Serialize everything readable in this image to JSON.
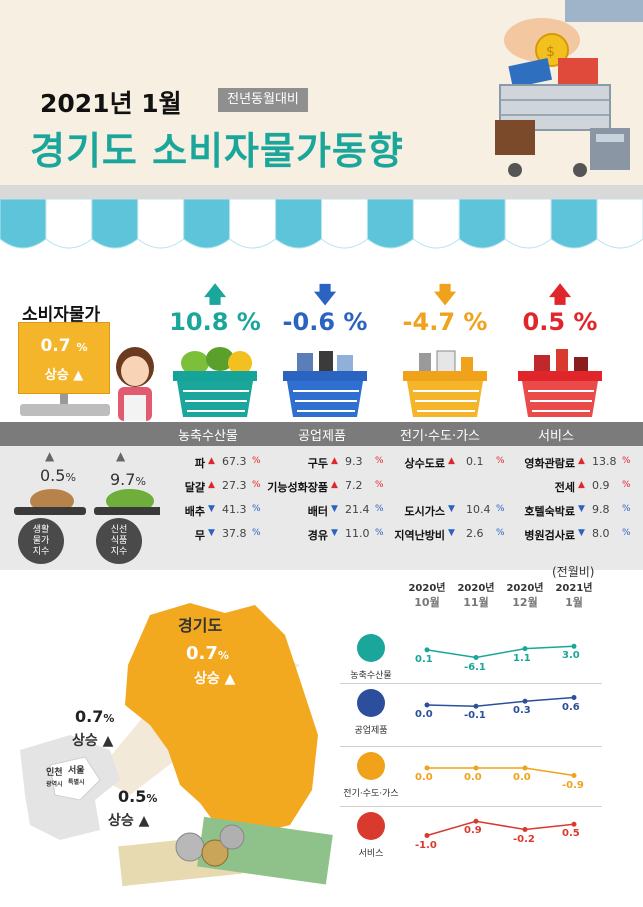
{
  "header": {
    "year_month": "2021년 1월",
    "badge": "전년동월대비",
    "title": "경기도 소비자물가동향"
  },
  "cpi": {
    "label": "소비자물가",
    "value": "0.7",
    "unit": "%",
    "direction": "상승"
  },
  "categories": [
    {
      "label": "농축수산물",
      "pct": "10.8 %",
      "arrow": "up",
      "color": "#1aa69a"
    },
    {
      "label": "공업제품",
      "pct": "-0.6 %",
      "arrow": "down",
      "color": "#2b63c0"
    },
    {
      "label": "전기·수도·가스",
      "pct": "-4.7 %",
      "arrow": "down",
      "color": "#f0a21b"
    },
    {
      "label": "서비스",
      "pct": "0.5 %",
      "arrow": "up",
      "color": "#e0262a"
    }
  ],
  "sub_indices": [
    {
      "label": "생활\n물가\n지수",
      "pct": "0.5",
      "unit": "%"
    },
    {
      "label": "신선\n식품\n지수",
      "pct": "9.7",
      "unit": "%"
    }
  ],
  "items": {
    "col1": [
      {
        "name": "파",
        "dir": "up",
        "val": "67.3",
        "unit": "%"
      },
      {
        "name": "달걀",
        "dir": "up",
        "val": "27.3",
        "unit": "%"
      },
      {
        "name": "배추",
        "dir": "down",
        "val": "41.3",
        "unit": "%"
      },
      {
        "name": "무",
        "dir": "down",
        "val": "37.8",
        "unit": "%"
      }
    ],
    "col2": [
      {
        "name": "구두",
        "dir": "up",
        "val": "9.3",
        "unit": "%"
      },
      {
        "name": "기능성화장품",
        "dir": "up",
        "val": "7.2",
        "unit": "%"
      },
      {
        "name": "배터",
        "dir": "down",
        "val": "21.4",
        "unit": "%"
      },
      {
        "name": "경유",
        "dir": "down",
        "val": "11.0",
        "unit": "%"
      }
    ],
    "col3": [
      {
        "name": "상수도료",
        "dir": "up",
        "val": "0.1",
        "unit": "%"
      },
      {
        "name": "",
        "dir": "",
        "val": "",
        "unit": ""
      },
      {
        "name": "도시가스",
        "dir": "down",
        "val": "10.4",
        "unit": "%"
      },
      {
        "name": "지역난방비",
        "dir": "down",
        "val": "2.6",
        "unit": "%"
      }
    ],
    "col4": [
      {
        "name": "영화관람료",
        "dir": "up",
        "val": "13.8",
        "unit": "%"
      },
      {
        "name": "전세",
        "dir": "up",
        "val": "0.9",
        "unit": "%"
      },
      {
        "name": "호텔숙박료",
        "dir": "down",
        "val": "9.8",
        "unit": "%"
      },
      {
        "name": "병원검사료",
        "dir": "down",
        "val": "8.0",
        "unit": "%"
      }
    ]
  },
  "map": {
    "gyeonggi_label": "경기도",
    "gyeonggi_value": "0.7",
    "gyeonggi_unit": "%",
    "gyeonggi_dir": "상승",
    "incheon_value": "0.7",
    "incheon_unit": "%",
    "incheon_dir": "상승",
    "seoul_value": "0.5",
    "seoul_unit": "%",
    "seoul_dir": "상승",
    "incheon_label": "인천",
    "incheon_sub": "광역시",
    "seoul_label": "서울",
    "seoul_sub": "특별시"
  },
  "chart_data": {
    "type": "line",
    "unit_label": "(전월비)",
    "columns": [
      {
        "year": "2020년",
        "month": "10월"
      },
      {
        "year": "2020년",
        "month": "11월"
      },
      {
        "year": "2020년",
        "month": "12월"
      },
      {
        "year": "2021년",
        "month": "1월"
      }
    ],
    "series": [
      {
        "name": "농축수산물",
        "values": [
          0.1,
          -6.1,
          1.1,
          3.0
        ],
        "labels": [
          "0.1",
          "-6.1",
          "1.1",
          "3.0"
        ],
        "color": "#1aa69a"
      },
      {
        "name": "공업제품",
        "values": [
          0.0,
          -0.1,
          0.3,
          0.6
        ],
        "labels": [
          "0.0",
          "-0.1",
          "0.3",
          "0.6"
        ],
        "color": "#2b4f9c"
      },
      {
        "name": "전기·수도·가스",
        "values": [
          0.0,
          0.0,
          0.0,
          -0.9
        ],
        "labels": [
          "0.0",
          "0.0",
          "0.0",
          "-0.9"
        ],
        "color": "#f0a21b"
      },
      {
        "name": "서비스",
        "values": [
          -1.0,
          0.9,
          -0.2,
          0.5
        ],
        "labels": [
          "-1.0",
          "0.9",
          "-0.2",
          "0.5"
        ],
        "color": "#d83a2e"
      }
    ]
  }
}
